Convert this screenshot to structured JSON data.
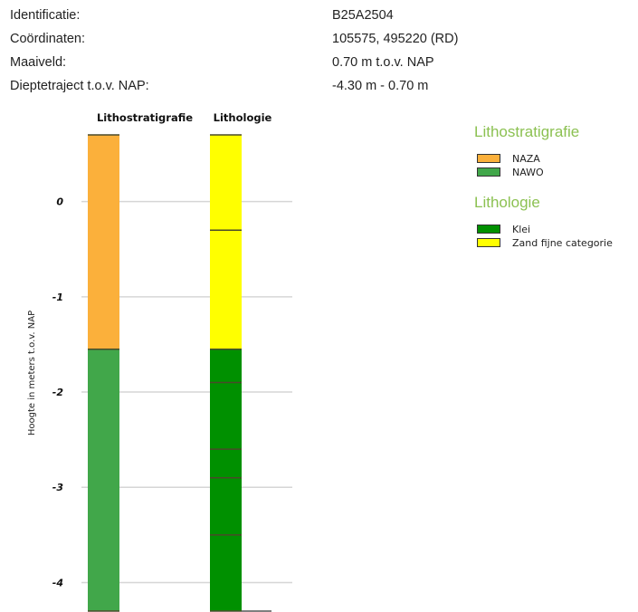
{
  "info": [
    {
      "label": "Identificatie:",
      "value": "B25A2504"
    },
    {
      "label": "Coördinaten:",
      "value": "105575, 495220 (RD)"
    },
    {
      "label": "Maaiveld:",
      "value": "0.70 m t.o.v. NAP"
    },
    {
      "label": "Dieptetraject t.o.v. NAP:",
      "value": "-4.30 m - 0.70 m"
    }
  ],
  "columns": {
    "litho": "Lithostratigrafie",
    "lithology": "Lithologie"
  },
  "axis": {
    "ylabel": "Hoogte in meters t.o.v. NAP"
  },
  "chart_data": {
    "type": "bar",
    "title": "",
    "ylabel": "Hoogte in meters t.o.v. NAP",
    "ylim": [
      -4.3,
      0.7
    ],
    "yticks": [
      0,
      -1,
      -2,
      -3,
      -4
    ],
    "yticklabels": [
      "0",
      "-1",
      "-2",
      "-3",
      "-4"
    ],
    "grid": true,
    "columns": [
      {
        "name": "Lithostratigrafie",
        "layers": [
          {
            "top": 0.7,
            "bottom": -1.55,
            "unit": "NAZA",
            "color": "#fbb03b"
          },
          {
            "top": -1.55,
            "bottom": -4.3,
            "unit": "NAWO",
            "color": "#41a74a"
          }
        ]
      },
      {
        "name": "Lithologie",
        "layers": [
          {
            "top": 0.7,
            "bottom": -0.3,
            "unit": "Zand fijne categorie",
            "color": "#ffff00"
          },
          {
            "top": -0.3,
            "bottom": -1.55,
            "unit": "Zand fijne categorie",
            "color": "#ffff00"
          },
          {
            "top": -1.55,
            "bottom": -1.9,
            "unit": "Klei",
            "color": "#009000"
          },
          {
            "top": -1.9,
            "bottom": -2.6,
            "unit": "Klei",
            "color": "#009000"
          },
          {
            "top": -2.6,
            "bottom": -2.9,
            "unit": "Klei",
            "color": "#009000"
          },
          {
            "top": -2.9,
            "bottom": -3.5,
            "unit": "Klei",
            "color": "#009000"
          },
          {
            "top": -3.5,
            "bottom": -4.3,
            "unit": "Klei",
            "color": "#009000"
          }
        ]
      }
    ]
  },
  "legend": [
    {
      "title": "Lithostratigrafie",
      "items": [
        {
          "label": "NAZA",
          "color": "#fbb03b"
        },
        {
          "label": "NAWO",
          "color": "#41a74a"
        }
      ]
    },
    {
      "title": "Lithologie",
      "items": [
        {
          "label": "Klei",
          "color": "#009000"
        },
        {
          "label": "Zand fijne categorie",
          "color": "#ffff00"
        }
      ]
    }
  ]
}
